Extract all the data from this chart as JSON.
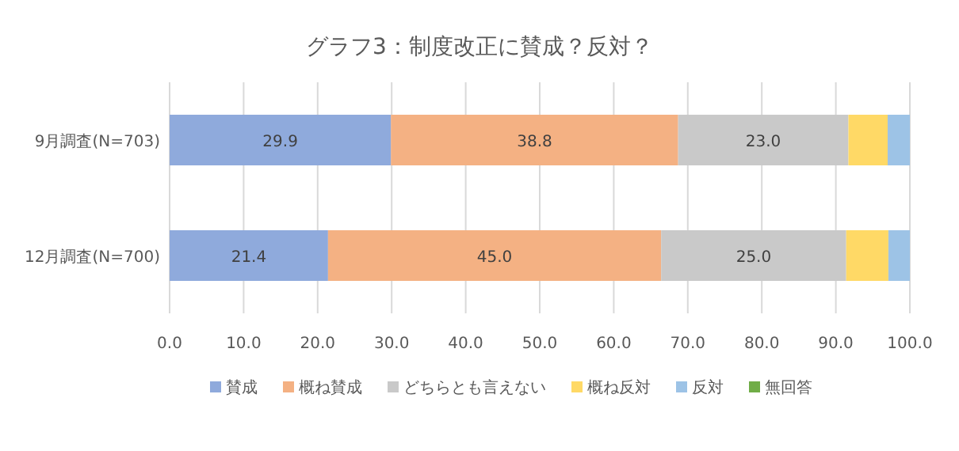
{
  "chart_data": {
    "type": "bar",
    "orientation": "horizontal",
    "stacked": true,
    "title": "グラフ3：制度改正に賛成？反対？",
    "categories": [
      "9月調査(N=703)",
      "12月調査(N=700)"
    ],
    "series": [
      {
        "name": "賛成",
        "color": "#8faadc",
        "values": [
          29.9,
          21.4
        ],
        "value_labels": [
          "29.9",
          "21.4"
        ]
      },
      {
        "name": "概ね賛成",
        "color": "#f4b183",
        "values": [
          38.8,
          45.0
        ],
        "value_labels": [
          "38.8",
          "45.0"
        ]
      },
      {
        "name": "どちらとも言えない",
        "color": "#c9c9c9",
        "values": [
          23.0,
          25.0
        ],
        "value_labels": [
          "23.0",
          "25.0"
        ]
      },
      {
        "name": "概ね反対",
        "color": "#ffd966",
        "values": [
          5.3,
          5.7
        ]
      },
      {
        "name": "反対",
        "color": "#9dc3e6",
        "values": [
          3.0,
          2.9
        ]
      },
      {
        "name": "無回答",
        "color": "#70ad47",
        "values": [
          0,
          0
        ]
      }
    ],
    "xlim": [
      0,
      100
    ],
    "xticks": [
      {
        "value": 0,
        "label": "0.0"
      },
      {
        "value": 10,
        "label": "10.0"
      },
      {
        "value": 20,
        "label": "20.0"
      },
      {
        "value": 30,
        "label": "30.0"
      },
      {
        "value": 40,
        "label": "40.0"
      },
      {
        "value": 50,
        "label": "50.0"
      },
      {
        "value": 60,
        "label": "60.0"
      },
      {
        "value": 70,
        "label": "70.0"
      },
      {
        "value": 80,
        "label": "80.0"
      },
      {
        "value": 90,
        "label": "90.0"
      },
      {
        "value": 100,
        "label": "100.0"
      }
    ],
    "grid": "x",
    "legend": "bottom"
  }
}
